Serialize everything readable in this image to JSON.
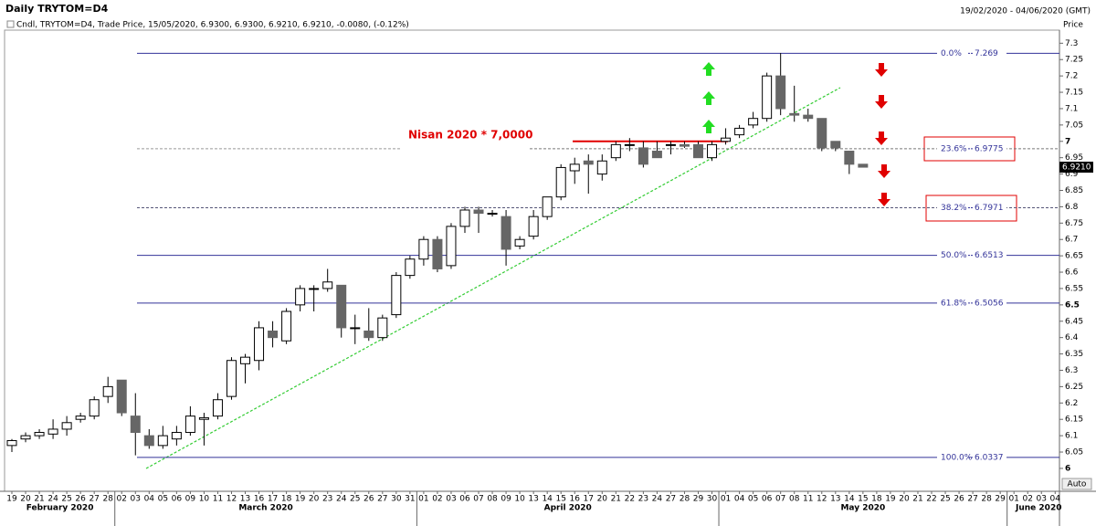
{
  "chart_data": {
    "type": "candlestick",
    "title": "Daily  TRYTOM=D4",
    "date_range": "19/02/2020 - 04/06/2020 (GMT)",
    "legend_text": "Cndl, TRYTOM=D4, Trade Price, 15/05/2020, 6.9300, 6.9300, 6.9210, 6.9210, -0.0080, (-0.12%)",
    "y_axis_label": "Price",
    "auto_button": "Auto",
    "annotation": "Nisan 2020 * 7,0000",
    "annotation_level": 7,
    "annotation_color": "#e00000",
    "up_color": "#ffffff",
    "down_color": "#666666",
    "months": [
      "February 2020",
      "March 2020",
      "April 2020",
      "May 2020",
      "June 2020"
    ],
    "categories": [
      "19",
      "20",
      "21",
      "24",
      "25",
      "26",
      "27",
      "28",
      "02",
      "03",
      "04",
      "05",
      "06",
      "09",
      "10",
      "11",
      "12",
      "13",
      "16",
      "17",
      "18",
      "19",
      "20",
      "23",
      "24",
      "25",
      "26",
      "27",
      "30",
      "31",
      "01",
      "02",
      "03",
      "06",
      "07",
      "08",
      "09",
      "10",
      "13",
      "14",
      "15",
      "16",
      "17",
      "20",
      "21",
      "22",
      "23",
      "24",
      "27",
      "28",
      "29",
      "30",
      "01",
      "04",
      "05",
      "06",
      "07",
      "08",
      "11",
      "12",
      "13",
      "14",
      "15",
      "18",
      "19",
      "20",
      "21",
      "22",
      "25",
      "26",
      "27",
      "28",
      "29",
      "01",
      "02",
      "03",
      "04"
    ],
    "open": [
      6.07,
      6.09,
      6.1,
      6.105,
      6.12,
      6.15,
      6.16,
      6.22,
      6.27,
      6.16,
      6.1,
      6.07,
      6.09,
      6.11,
      6.15,
      6.16,
      6.22,
      6.32,
      6.33,
      6.42,
      6.39,
      6.5,
      6.55,
      6.55,
      6.56,
      6.43,
      6.42,
      6.4,
      6.47,
      6.59,
      6.64,
      6.7,
      6.62,
      6.74,
      6.79,
      6.78,
      6.77,
      6.68,
      6.71,
      6.77,
      6.83,
      6.91,
      6.94,
      6.9,
      6.95,
      6.99,
      6.98,
      6.97,
      6.99,
      6.99,
      6.99,
      6.95,
      7.0,
      7.02,
      7.05,
      7.07,
      7.2,
      7.085,
      7.08,
      7.07,
      7.0,
      6.97,
      6.93,
      null,
      null,
      null,
      null,
      null,
      null,
      null,
      null,
      null,
      null,
      null,
      null,
      null,
      null
    ],
    "high": [
      6.09,
      6.11,
      6.12,
      6.15,
      6.16,
      6.17,
      6.22,
      6.28,
      6.27,
      6.23,
      6.12,
      6.13,
      6.13,
      6.19,
      6.17,
      6.23,
      6.34,
      6.35,
      6.45,
      6.45,
      6.49,
      6.56,
      6.56,
      6.61,
      6.56,
      6.47,
      6.49,
      6.47,
      6.6,
      6.65,
      6.71,
      6.71,
      6.75,
      6.8,
      6.8,
      6.79,
      6.79,
      6.71,
      6.79,
      6.83,
      6.93,
      6.95,
      6.96,
      6.96,
      7.0,
      7.01,
      7.0,
      7.0,
      7.0,
      7.0,
      7.0,
      7.0,
      7.04,
      7.05,
      7.09,
      7.21,
      7.27,
      7.17,
      7.1,
      7.07,
      7.0,
      6.97,
      6.93,
      null,
      null,
      null,
      null,
      null,
      null,
      null,
      null,
      null,
      null,
      null,
      null,
      null,
      null
    ],
    "low": [
      6.05,
      6.08,
      6.09,
      6.09,
      6.1,
      6.14,
      6.15,
      6.2,
      6.16,
      6.04,
      6.06,
      6.06,
      6.07,
      6.1,
      6.07,
      6.15,
      6.21,
      6.26,
      6.3,
      6.37,
      6.38,
      6.48,
      6.48,
      6.54,
      6.4,
      6.38,
      6.39,
      6.39,
      6.46,
      6.58,
      6.62,
      6.6,
      6.61,
      6.72,
      6.72,
      6.77,
      6.62,
      6.67,
      6.7,
      6.76,
      6.82,
      6.87,
      6.84,
      6.88,
      6.94,
      6.97,
      6.92,
      6.95,
      6.96,
      6.98,
      6.95,
      6.94,
      6.99,
      7.01,
      7.04,
      7.06,
      7.08,
      7.06,
      7.06,
      6.97,
      6.97,
      6.9,
      6.921,
      null,
      null,
      null,
      null,
      null,
      null,
      null,
      null,
      null,
      null,
      null,
      null,
      null,
      null
    ],
    "close": [
      6.085,
      6.1,
      6.11,
      6.12,
      6.14,
      6.16,
      6.21,
      6.25,
      6.17,
      6.11,
      6.07,
      6.1,
      6.11,
      6.16,
      6.155,
      6.21,
      6.33,
      6.34,
      6.43,
      6.4,
      6.48,
      6.55,
      6.55,
      6.57,
      6.43,
      6.43,
      6.4,
      6.46,
      6.59,
      6.64,
      6.7,
      6.61,
      6.74,
      6.79,
      6.78,
      6.78,
      6.67,
      6.7,
      6.77,
      6.83,
      6.92,
      6.93,
      6.93,
      6.94,
      6.99,
      6.99,
      6.93,
      6.95,
      6.99,
      6.985,
      6.95,
      6.99,
      7.01,
      7.04,
      7.07,
      7.2,
      7.1,
      7.08,
      7.07,
      6.98,
      6.98,
      6.93,
      6.921,
      null,
      null,
      null,
      null,
      null,
      null,
      null,
      null,
      null,
      null,
      null,
      null,
      null,
      null
    ],
    "last_price": {
      "value": 6.921,
      "label": "6.9210"
    },
    "fib_levels": [
      {
        "label": "0.0%",
        "value": 7.269
      },
      {
        "label": "23.6%",
        "value": 6.9775
      },
      {
        "label": "38.2%",
        "value": 6.7971
      },
      {
        "label": "50.0%",
        "value": 6.6513
      },
      {
        "label": "61.8%",
        "value": 6.5056
      },
      {
        "label": "100.0%",
        "value": 6.0337
      }
    ],
    "fib_color": "#333399",
    "ylim": [
      5.93,
      7.34
    ],
    "yticks": [
      6,
      6.05,
      6.1,
      6.15,
      6.2,
      6.25,
      6.3,
      6.35,
      6.4,
      6.45,
      6.5,
      6.55,
      6.6,
      6.65,
      6.7,
      6.75,
      6.8,
      6.85,
      6.9,
      6.95,
      7,
      7.05,
      7.1,
      7.15,
      7.2,
      7.25,
      7.3
    ]
  }
}
